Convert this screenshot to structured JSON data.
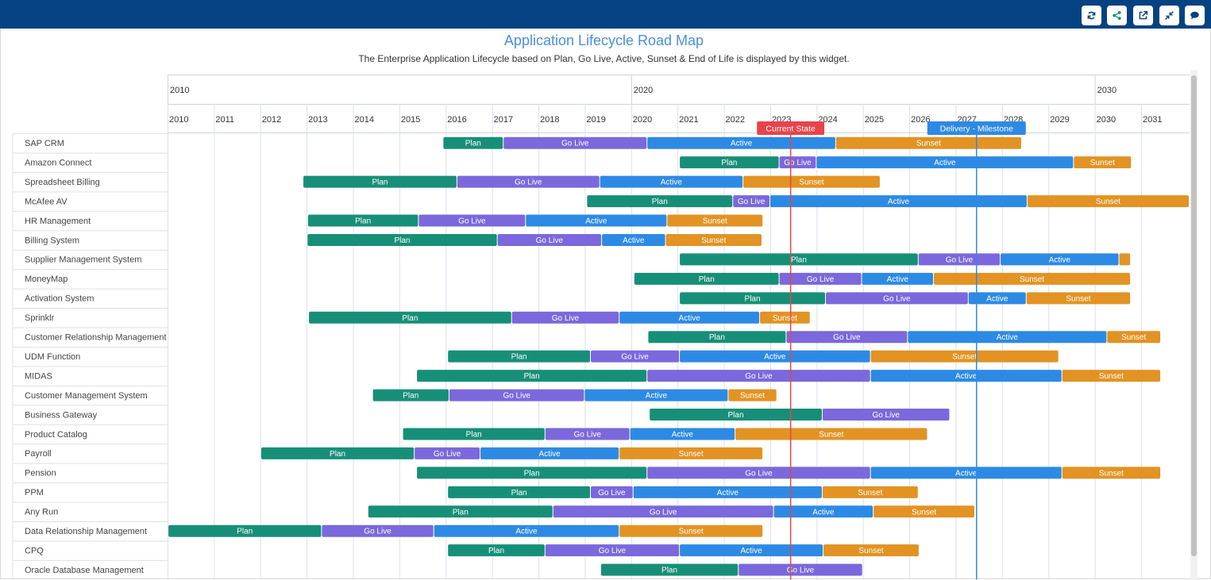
{
  "toolbar": {
    "buttons": [
      {
        "id": "refresh",
        "icon": "refresh-icon"
      },
      {
        "id": "share",
        "icon": "share-icon"
      },
      {
        "id": "open",
        "icon": "external-link-icon"
      },
      {
        "id": "collapse",
        "icon": "collapse-icon"
      },
      {
        "id": "comment",
        "icon": "comment-icon"
      }
    ]
  },
  "colors": {
    "header": "#054282",
    "Plan": "#178f78",
    "Go Live": "#7b68dc",
    "Active": "#2d8ae4",
    "Sunset": "#e29323",
    "current_state": "#e8434a",
    "milestone": "#2d8ae4",
    "title": "#4a90d9"
  },
  "chart_data": {
    "type": "gantt",
    "title": "Application Lifecycle Road Map",
    "subtitle": "The Enterprise Application Lifecycle based on Plan, Go Live, Active, Sunset & End of Life is displayed by this widget.",
    "x_range": [
      2010,
      2032.1
    ],
    "decade_labels": [
      "2010",
      "2020",
      "2030"
    ],
    "year_labels": [
      "2010",
      "2011",
      "2012",
      "2013",
      "2014",
      "2015",
      "2016",
      "2017",
      "2018",
      "2019",
      "2020",
      "2021",
      "2022",
      "2023",
      "2024",
      "2025",
      "2026",
      "2027",
      "2028",
      "2029",
      "2030",
      "2031"
    ],
    "markers": [
      {
        "label": "Current State",
        "x": 2023.44,
        "color": "#e8434a"
      },
      {
        "label": "Delivery - Milestone",
        "x": 2027.45,
        "color": "#2d8ae4"
      }
    ],
    "rows": [
      {
        "name": "SAP CRM",
        "phases": [
          {
            "phase": "Plan",
            "start": 2015.95,
            "end": 2017.25
          },
          {
            "phase": "Go Live",
            "start": 2017.25,
            "end": 2020.35
          },
          {
            "phase": "Active",
            "start": 2020.35,
            "end": 2024.42
          },
          {
            "phase": "Sunset",
            "start": 2024.42,
            "end": 2028.43
          }
        ]
      },
      {
        "name": "Amazon Connect",
        "phases": [
          {
            "phase": "Plan",
            "start": 2021.05,
            "end": 2023.2
          },
          {
            "phase": "Go Live",
            "start": 2023.2,
            "end": 2024.0
          },
          {
            "phase": "Active",
            "start": 2024.0,
            "end": 2029.55
          },
          {
            "phase": "Sunset",
            "start": 2029.55,
            "end": 2030.8
          }
        ]
      },
      {
        "name": "Spreadsheet Billing",
        "phases": [
          {
            "phase": "Plan",
            "start": 2012.93,
            "end": 2016.25
          },
          {
            "phase": "Go Live",
            "start": 2016.25,
            "end": 2019.33
          },
          {
            "phase": "Active",
            "start": 2019.33,
            "end": 2022.42
          },
          {
            "phase": "Sunset",
            "start": 2022.42,
            "end": 2025.38
          }
        ]
      },
      {
        "name": "McAfee AV",
        "phases": [
          {
            "phase": "Plan",
            "start": 2019.05,
            "end": 2022.2
          },
          {
            "phase": "Go Live",
            "start": 2022.2,
            "end": 2023.0
          },
          {
            "phase": "Active",
            "start": 2023.0,
            "end": 2028.55
          },
          {
            "phase": "Sunset",
            "start": 2028.55,
            "end": 2032.1
          }
        ]
      },
      {
        "name": "HR Management",
        "phases": [
          {
            "phase": "Plan",
            "start": 2013.03,
            "end": 2015.42
          },
          {
            "phase": "Go Live",
            "start": 2015.42,
            "end": 2017.73
          },
          {
            "phase": "Active",
            "start": 2017.73,
            "end": 2020.78
          },
          {
            "phase": "Sunset",
            "start": 2020.78,
            "end": 2022.85
          }
        ]
      },
      {
        "name": "Billing System",
        "phases": [
          {
            "phase": "Plan",
            "start": 2013.02,
            "end": 2017.12
          },
          {
            "phase": "Go Live",
            "start": 2017.12,
            "end": 2019.37
          },
          {
            "phase": "Active",
            "start": 2019.37,
            "end": 2020.75
          },
          {
            "phase": "Sunset",
            "start": 2020.75,
            "end": 2022.83
          }
        ]
      },
      {
        "name": "Supplier Management System",
        "phases": [
          {
            "phase": "Plan",
            "start": 2021.05,
            "end": 2026.2
          },
          {
            "phase": "Go Live",
            "start": 2026.2,
            "end": 2027.97
          },
          {
            "phase": "Active",
            "start": 2027.97,
            "end": 2030.53
          },
          {
            "phase": "Sunset",
            "start": 2030.53,
            "end": 2030.78
          }
        ]
      },
      {
        "name": "MoneyMap",
        "phases": [
          {
            "phase": "Plan",
            "start": 2020.07,
            "end": 2023.2
          },
          {
            "phase": "Go Live",
            "start": 2023.2,
            "end": 2024.98
          },
          {
            "phase": "Active",
            "start": 2024.98,
            "end": 2026.53
          },
          {
            "phase": "Sunset",
            "start": 2026.53,
            "end": 2030.78
          }
        ]
      },
      {
        "name": "Activation System",
        "phases": [
          {
            "phase": "Plan",
            "start": 2021.05,
            "end": 2024.2
          },
          {
            "phase": "Go Live",
            "start": 2024.2,
            "end": 2027.28
          },
          {
            "phase": "Active",
            "start": 2027.28,
            "end": 2028.53
          },
          {
            "phase": "Sunset",
            "start": 2028.53,
            "end": 2030.78
          }
        ]
      },
      {
        "name": "Sprinklr",
        "phases": [
          {
            "phase": "Plan",
            "start": 2013.05,
            "end": 2017.43
          },
          {
            "phase": "Go Live",
            "start": 2017.43,
            "end": 2019.75
          },
          {
            "phase": "Active",
            "start": 2019.75,
            "end": 2022.78
          },
          {
            "phase": "Sunset",
            "start": 2022.78,
            "end": 2023.87
          }
        ]
      },
      {
        "name": "Customer Relationship Management",
        "phases": [
          {
            "phase": "Plan",
            "start": 2020.37,
            "end": 2023.35
          },
          {
            "phase": "Go Live",
            "start": 2023.35,
            "end": 2025.97
          },
          {
            "phase": "Active",
            "start": 2025.97,
            "end": 2030.27
          },
          {
            "phase": "Sunset",
            "start": 2030.27,
            "end": 2031.43
          }
        ]
      },
      {
        "name": "UDM Function",
        "phases": [
          {
            "phase": "Plan",
            "start": 2016.05,
            "end": 2019.13
          },
          {
            "phase": "Go Live",
            "start": 2019.13,
            "end": 2021.05
          },
          {
            "phase": "Active",
            "start": 2021.05,
            "end": 2025.17
          },
          {
            "phase": "Sunset",
            "start": 2025.17,
            "end": 2029.23
          }
        ]
      },
      {
        "name": "MIDAS",
        "phases": [
          {
            "phase": "Plan",
            "start": 2015.38,
            "end": 2020.35
          },
          {
            "phase": "Go Live",
            "start": 2020.35,
            "end": 2025.17
          },
          {
            "phase": "Active",
            "start": 2025.17,
            "end": 2029.3
          },
          {
            "phase": "Sunset",
            "start": 2029.3,
            "end": 2031.43
          }
        ]
      },
      {
        "name": "Customer Management System",
        "phases": [
          {
            "phase": "Plan",
            "start": 2014.43,
            "end": 2016.08
          },
          {
            "phase": "Go Live",
            "start": 2016.08,
            "end": 2019.0
          },
          {
            "phase": "Active",
            "start": 2019.0,
            "end": 2022.1
          },
          {
            "phase": "Sunset",
            "start": 2022.1,
            "end": 2023.15
          }
        ]
      },
      {
        "name": "Business Gateway",
        "phases": [
          {
            "phase": "Plan",
            "start": 2020.4,
            "end": 2024.13
          },
          {
            "phase": "Go Live",
            "start": 2024.13,
            "end": 2026.88
          }
        ]
      },
      {
        "name": "Product Catalog",
        "phases": [
          {
            "phase": "Plan",
            "start": 2015.08,
            "end": 2018.15
          },
          {
            "phase": "Go Live",
            "start": 2018.15,
            "end": 2019.98
          },
          {
            "phase": "Active",
            "start": 2019.98,
            "end": 2022.25
          },
          {
            "phase": "Sunset",
            "start": 2022.25,
            "end": 2026.4
          }
        ]
      },
      {
        "name": "Payroll",
        "phases": [
          {
            "phase": "Plan",
            "start": 2012.02,
            "end": 2015.33
          },
          {
            "phase": "Go Live",
            "start": 2015.33,
            "end": 2016.75
          },
          {
            "phase": "Active",
            "start": 2016.75,
            "end": 2019.75
          },
          {
            "phase": "Sunset",
            "start": 2019.75,
            "end": 2022.85
          }
        ]
      },
      {
        "name": "Pension",
        "phases": [
          {
            "phase": "Plan",
            "start": 2015.38,
            "end": 2020.35
          },
          {
            "phase": "Go Live",
            "start": 2020.35,
            "end": 2025.17
          },
          {
            "phase": "Active",
            "start": 2025.17,
            "end": 2029.3
          },
          {
            "phase": "Sunset",
            "start": 2029.3,
            "end": 2031.43
          }
        ]
      },
      {
        "name": "PPM",
        "phases": [
          {
            "phase": "Plan",
            "start": 2016.05,
            "end": 2019.13
          },
          {
            "phase": "Go Live",
            "start": 2019.13,
            "end": 2020.05
          },
          {
            "phase": "Active",
            "start": 2020.05,
            "end": 2024.13
          },
          {
            "phase": "Sunset",
            "start": 2024.13,
            "end": 2026.2
          }
        ]
      },
      {
        "name": "Any Run",
        "phases": [
          {
            "phase": "Plan",
            "start": 2014.33,
            "end": 2018.32
          },
          {
            "phase": "Go Live",
            "start": 2018.32,
            "end": 2023.08
          },
          {
            "phase": "Active",
            "start": 2023.08,
            "end": 2025.23
          },
          {
            "phase": "Sunset",
            "start": 2025.23,
            "end": 2027.42
          }
        ]
      },
      {
        "name": "Data Relationship Management",
        "phases": [
          {
            "phase": "Plan",
            "start": 2010.02,
            "end": 2013.33
          },
          {
            "phase": "Go Live",
            "start": 2013.33,
            "end": 2015.75
          },
          {
            "phase": "Active",
            "start": 2015.75,
            "end": 2019.75
          },
          {
            "phase": "Sunset",
            "start": 2019.75,
            "end": 2022.85
          }
        ]
      },
      {
        "name": "CPQ",
        "phases": [
          {
            "phase": "Plan",
            "start": 2016.05,
            "end": 2018.15
          },
          {
            "phase": "Go Live",
            "start": 2018.15,
            "end": 2021.05
          },
          {
            "phase": "Active",
            "start": 2021.05,
            "end": 2024.15
          },
          {
            "phase": "Sunset",
            "start": 2024.15,
            "end": 2026.22
          }
        ]
      },
      {
        "name": "Oracle Database Management",
        "phases": [
          {
            "phase": "Plan",
            "start": 2019.35,
            "end": 2022.32
          },
          {
            "phase": "Go Live",
            "start": 2022.32,
            "end": 2025.0
          }
        ]
      }
    ]
  }
}
